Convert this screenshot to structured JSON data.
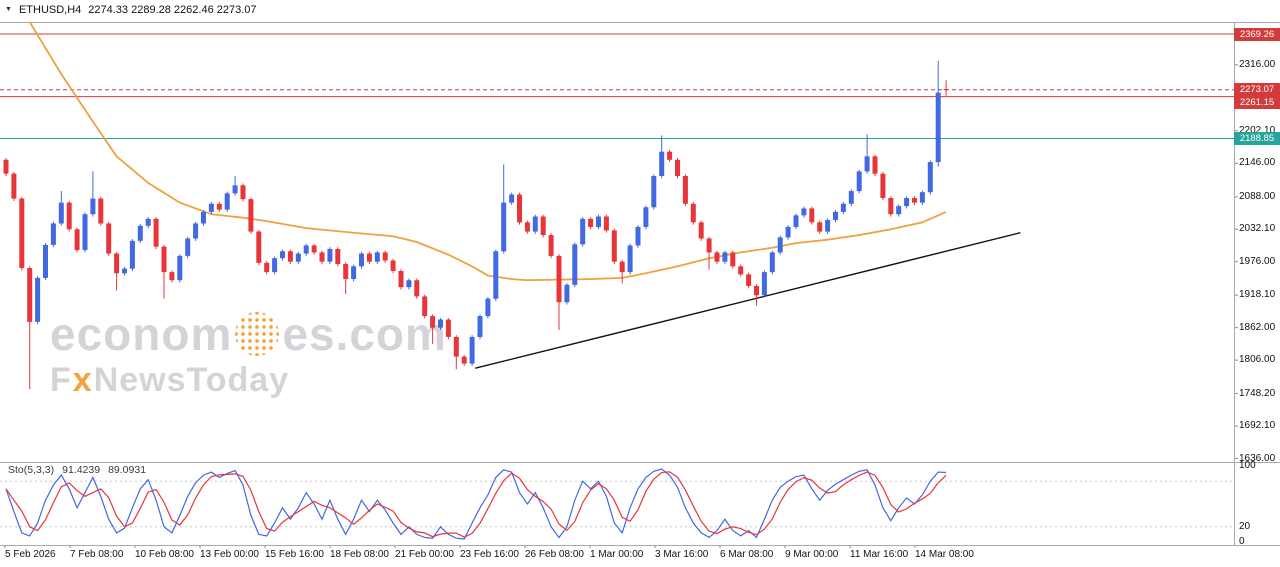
{
  "header": {
    "collapse_icon": "▼",
    "symbol_timeframe": "ETHUSD,H4",
    "ohlc": "2274.33 2289.28 2262.46 2273.07"
  },
  "colors": {
    "up": "#4169e1",
    "down": "#e8353a",
    "ma": "#f0a23f",
    "trendline": "#111111",
    "level_red": "#d23b3b",
    "level_teal": "#26a69a",
    "stoch_main": "#4169e1",
    "stoch_signal": "#e8353a",
    "frame": "#a9a9a9",
    "watermark_gray": "#d4d4d8",
    "watermark_orange": "#f5a33c"
  },
  "watermark": {
    "text1": "econom",
    "text2": "es.com",
    "f": "F",
    "x": "x",
    "rest": "NewsToday"
  },
  "price_axis": {
    "ticks": [
      {
        "label": "2316.00",
        "value": 2316.0
      },
      {
        "label": "2202.10",
        "value": 2202.1
      },
      {
        "label": "2146.00",
        "value": 2146.0
      },
      {
        "label": "2088.00",
        "value": 2088.0
      },
      {
        "label": "2032.10",
        "value": 2032.1
      },
      {
        "label": "1976.00",
        "value": 1976.0
      },
      {
        "label": "1918.10",
        "value": 1918.1
      },
      {
        "label": "1862.00",
        "value": 1862.0
      },
      {
        "label": "1806.00",
        "value": 1806.0
      },
      {
        "label": "1748.20",
        "value": 1748.2
      },
      {
        "label": "1692.10",
        "value": 1692.1
      },
      {
        "label": "1636.00",
        "value": 1636.0
      }
    ]
  },
  "time_axis": {
    "labels": [
      "5 Feb 2026",
      "7 Feb 08:00",
      "10 Feb 08:00",
      "13 Feb 00:00",
      "15 Feb 16:00",
      "18 Feb 08:00",
      "21 Feb 00:00",
      "23 Feb 16:00",
      "26 Feb 08:00",
      "1 Mar 00:00",
      "3 Mar 16:00",
      "6 Mar 08:00",
      "9 Mar 00:00",
      "11 Mar 16:00",
      "14 Mar 08:00"
    ]
  },
  "chart_data": {
    "type": "candlestick",
    "symbol": "ETHUSD",
    "timeframe": "H4",
    "title": "ETHUSD,H4",
    "last_candle": {
      "open": 2274.33,
      "high": 2289.28,
      "low": 2262.46,
      "close": 2273.07
    },
    "ylim": [
      1630,
      2390
    ],
    "first_open": 2152,
    "closes": [
      2128,
      2085,
      1965,
      1872,
      1948,
      2005,
      2042,
      2078,
      2032,
      1996,
      2058,
      2085,
      2042,
      1990,
      1956,
      1964,
      2012,
      2038,
      2050,
      2002,
      1958,
      1944,
      1986,
      2016,
      2042,
      2062,
      2076,
      2066,
      2094,
      2108,
      2084,
      2028,
      1974,
      1958,
      1982,
      1994,
      1976,
      1990,
      2004,
      1992,
      1976,
      1998,
      1972,
      1946,
      1968,
      1990,
      1976,
      1992,
      1978,
      1960,
      1932,
      1944,
      1916,
      1882,
      1862,
      1876,
      1846,
      1812,
      1800,
      1846,
      1882,
      1912,
      1994,
      2078,
      2092,
      2044,
      2028,
      2054,
      2022,
      1986,
      1906,
      1936,
      2006,
      2050,
      2036,
      2054,
      2030,
      1976,
      1958,
      2004,
      2036,
      2070,
      2124,
      2166,
      2152,
      2124,
      2076,
      2044,
      2016,
      1992,
      1976,
      1992,
      1968,
      1954,
      1934,
      1918,
      1958,
      1992,
      2018,
      2036,
      2056,
      2068,
      2044,
      2028,
      2048,
      2062,
      2076,
      2098,
      2132,
      2158,
      2128,
      2086,
      2058,
      2072,
      2086,
      2078,
      2096,
      2148,
      2268,
      2273.07
    ],
    "wick_spikes": {
      "3": {
        "low": 1756
      },
      "7": {
        "high": 2098
      },
      "11": {
        "high": 2132
      },
      "14": {
        "low": 1926
      },
      "20": {
        "low": 1912
      },
      "29": {
        "high": 2124
      },
      "43": {
        "low": 1920
      },
      "54": {
        "low": 1834
      },
      "57": {
        "low": 1790
      },
      "63": {
        "high": 2144
      },
      "70": {
        "low": 1858
      },
      "78": {
        "low": 1938
      },
      "83": {
        "high": 2194
      },
      "89": {
        "low": 1962
      },
      "95": {
        "low": 1900
      },
      "109": {
        "high": 2196
      },
      "118": {
        "high": 2323,
        "low": 2140
      }
    },
    "full_overrides": {
      "119": [
        2274.33,
        2289.28,
        2262.46,
        2273.07
      ]
    },
    "ma_points": [
      [
        3,
        2390
      ],
      [
        7,
        2300
      ],
      [
        11,
        2218
      ],
      [
        14,
        2158
      ],
      [
        18,
        2112
      ],
      [
        22,
        2078
      ],
      [
        26,
        2058
      ],
      [
        30,
        2052
      ],
      [
        33,
        2046
      ],
      [
        38,
        2034
      ],
      [
        44,
        2026
      ],
      [
        49,
        2020
      ],
      [
        52,
        2010
      ],
      [
        56,
        1988
      ],
      [
        59,
        1968
      ],
      [
        61,
        1952
      ],
      [
        64,
        1946
      ],
      [
        66,
        1944
      ],
      [
        70,
        1945
      ],
      [
        74,
        1946
      ],
      [
        78,
        1948
      ],
      [
        81,
        1956
      ],
      [
        85,
        1968
      ],
      [
        89,
        1982
      ],
      [
        93,
        1992
      ],
      [
        97,
        2000
      ],
      [
        100,
        2008
      ],
      [
        104,
        2014
      ],
      [
        108,
        2022
      ],
      [
        112,
        2032
      ],
      [
        116,
        2044
      ],
      [
        119,
        2062
      ]
    ],
    "trendline": {
      "from": {
        "index": 59.4,
        "price": 1792
      },
      "to": {
        "index": 128.4,
        "price": 2026
      }
    },
    "levels": [
      {
        "price": 2369.26,
        "label": "2369.26",
        "color": "#d23b3b",
        "style": "solid"
      },
      {
        "price": 2273.07,
        "label": "2273.07",
        "color": "#d23b3b",
        "style": "dashed",
        "role": "current-price"
      },
      {
        "price": 2261.15,
        "label": "2261.15",
        "color": "#d23b3b",
        "style": "solid"
      },
      {
        "price": 2188.85,
        "label": "2188.85",
        "color": "#26a69a",
        "style": "solid"
      }
    ],
    "stochastic": {
      "label": "Sto(5,3,3)",
      "main_value": "91.4239",
      "signal_value": "89.0931",
      "range": [
        0,
        100
      ],
      "levels": [
        80,
        20
      ],
      "axis_labels": [
        {
          "label": "100",
          "value": 100
        },
        {
          "label": "20",
          "value": 20
        },
        {
          "label": "0",
          "value": 0
        }
      ],
      "main": [
        70,
        40,
        12,
        8,
        25,
        55,
        75,
        88,
        70,
        45,
        65,
        85,
        60,
        30,
        12,
        18,
        45,
        70,
        82,
        55,
        20,
        12,
        35,
        60,
        78,
        88,
        92,
        85,
        90,
        94,
        75,
        35,
        10,
        8,
        25,
        45,
        30,
        45,
        65,
        50,
        30,
        55,
        30,
        10,
        30,
        55,
        40,
        55,
        42,
        25,
        10,
        20,
        10,
        6,
        5,
        20,
        10,
        5,
        4,
        25,
        45,
        62,
        85,
        95,
        92,
        65,
        50,
        65,
        45,
        20,
        6,
        20,
        55,
        80,
        70,
        80,
        60,
        25,
        12,
        45,
        70,
        85,
        93,
        96,
        88,
        72,
        45,
        25,
        12,
        6,
        15,
        30,
        15,
        8,
        15,
        6,
        30,
        55,
        72,
        80,
        86,
        88,
        70,
        55,
        68,
        76,
        82,
        88,
        93,
        95,
        75,
        45,
        28,
        45,
        58,
        50,
        62,
        80,
        92,
        91.42
      ]
    }
  }
}
